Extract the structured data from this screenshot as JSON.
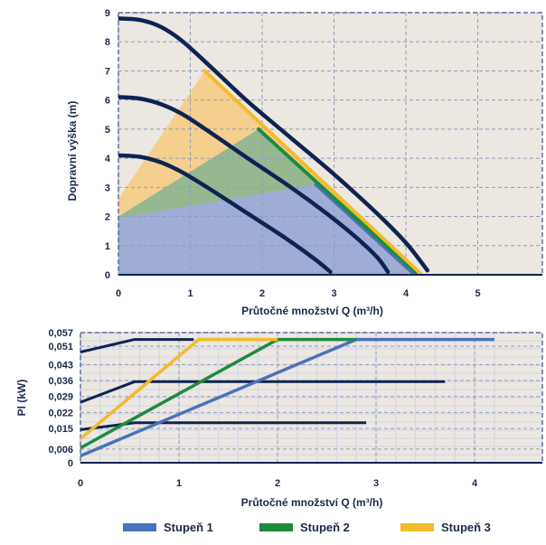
{
  "colors": {
    "curve": "#0d2350",
    "stage1": "#4a72b8",
    "stage2": "#1f8a3e",
    "stage3": "#f2bb2a",
    "plot_bg": "#ece7e1",
    "grid": "#8f9cbc",
    "grid_fine": "#cfd6e6",
    "region1": "#9eacd6",
    "region2": "#95b890",
    "region3": "#f4cf8e"
  },
  "chart_data": [
    {
      "type": "line",
      "xlabel": "Průtočné množství Q (m³/h)",
      "ylabel": "Dopravní výška (m)",
      "xlim": [
        0,
        6
      ],
      "ylim": [
        0,
        9
      ],
      "xticks": [
        "0",
        "1",
        "2",
        "3",
        "4",
        "5"
      ],
      "yticks": [
        "0",
        "1",
        "2",
        "3",
        "4",
        "5",
        "6",
        "7",
        "8",
        "9"
      ],
      "grid": true,
      "series": [
        {
          "color_key": "curve",
          "points": [
            [
              0,
              4.1
            ],
            [
              0.3,
              4.05
            ],
            [
              0.6,
              3.85
            ],
            [
              0.9,
              3.5
            ],
            [
              1.3,
              2.9
            ],
            [
              1.8,
              2.1
            ],
            [
              2.3,
              1.3
            ],
            [
              2.7,
              0.6
            ],
            [
              2.95,
              0.1
            ]
          ]
        },
        {
          "color_key": "curve",
          "points": [
            [
              0,
              6.1
            ],
            [
              0.3,
              6.05
            ],
            [
              0.6,
              5.85
            ],
            [
              0.9,
              5.5
            ],
            [
              1.3,
              4.85
            ],
            [
              1.8,
              4.0
            ],
            [
              2.4,
              3.0
            ],
            [
              2.9,
              2.1
            ],
            [
              3.3,
              1.3
            ],
            [
              3.6,
              0.6
            ],
            [
              3.75,
              0.1
            ]
          ]
        },
        {
          "color_key": "curve",
          "points": [
            [
              0,
              8.8
            ],
            [
              0.3,
              8.75
            ],
            [
              0.6,
              8.5
            ],
            [
              0.9,
              8.0
            ],
            [
              1.3,
              7.1
            ],
            [
              1.8,
              5.95
            ],
            [
              2.4,
              4.7
            ],
            [
              3.0,
              3.45
            ],
            [
              3.6,
              2.1
            ],
            [
              4.0,
              1.1
            ],
            [
              4.3,
              0.15
            ]
          ]
        }
      ],
      "segments": [
        {
          "color_key": "stage1",
          "points": [
            [
              2.75,
              3.1
            ],
            [
              4.1,
              0.05
            ]
          ]
        },
        {
          "color_key": "stage2",
          "points": [
            [
              1.95,
              5.0
            ],
            [
              4.15,
              0.05
            ]
          ]
        },
        {
          "color_key": "stage3",
          "points": [
            [
              1.2,
              7.0
            ],
            [
              4.2,
              0.05
            ]
          ]
        }
      ],
      "regions": [
        {
          "color_key": "region3",
          "points": [
            [
              0,
              2.6
            ],
            [
              1.2,
              7.0
            ],
            [
              4.2,
              0
            ],
            [
              0,
              0
            ]
          ]
        },
        {
          "color_key": "region2",
          "points": [
            [
              0,
              2.0
            ],
            [
              1.95,
              5.0
            ],
            [
              4.15,
              0
            ],
            [
              0,
              0
            ]
          ]
        },
        {
          "color_key": "region1",
          "points": [
            [
              0,
              1.95
            ],
            [
              2.75,
              3.1
            ],
            [
              4.1,
              0
            ],
            [
              0,
              0
            ]
          ]
        }
      ]
    },
    {
      "type": "line",
      "xlabel": "Průtočné množství Q (m³/h)",
      "ylabel": "Pl (kW)",
      "xlim": [
        0,
        4.4
      ],
      "ylim": [
        0,
        0.057
      ],
      "xticks": [
        "0",
        "1",
        "2",
        "3",
        "4"
      ],
      "yticks": [
        "0",
        "0,006",
        "0,015",
        "0,022",
        "0,029",
        "0,036",
        "0,043",
        "0,051",
        "0,057"
      ],
      "ytick_values": [
        0,
        0.006,
        0.015,
        0.022,
        0.029,
        0.036,
        0.043,
        0.051,
        0.057
      ],
      "grid": true,
      "series": [
        {
          "color_key": "curve",
          "points": [
            [
              0,
              0.0485
            ],
            [
              0.55,
              0.054
            ],
            [
              1.15,
              0.054
            ]
          ]
        },
        {
          "color_key": "curve",
          "points": [
            [
              0,
              0.0265
            ],
            [
              0.55,
              0.0355
            ],
            [
              3.7,
              0.0355
            ]
          ]
        },
        {
          "color_key": "curve",
          "points": [
            [
              0,
              0.0145
            ],
            [
              0.55,
              0.0175
            ],
            [
              2.9,
              0.0175
            ]
          ]
        },
        {
          "color_key": "stage1",
          "points": [
            [
              0,
              0.003
            ],
            [
              2.8,
              0.054
            ],
            [
              4.2,
              0.054
            ]
          ]
        },
        {
          "color_key": "stage2",
          "points": [
            [
              0,
              0.0065
            ],
            [
              2.0,
              0.054
            ],
            [
              2.8,
              0.054
            ]
          ]
        },
        {
          "color_key": "stage3",
          "points": [
            [
              0,
              0.0105
            ],
            [
              1.2,
              0.054
            ],
            [
              2.0,
              0.054
            ]
          ]
        }
      ]
    }
  ],
  "legend": {
    "placement": "bottom",
    "items": [
      {
        "label": "Stupeň 1",
        "color_key": "stage1"
      },
      {
        "label": "Stupeň 2",
        "color_key": "stage2"
      },
      {
        "label": "Stupeň 3",
        "color_key": "stage3"
      }
    ]
  }
}
